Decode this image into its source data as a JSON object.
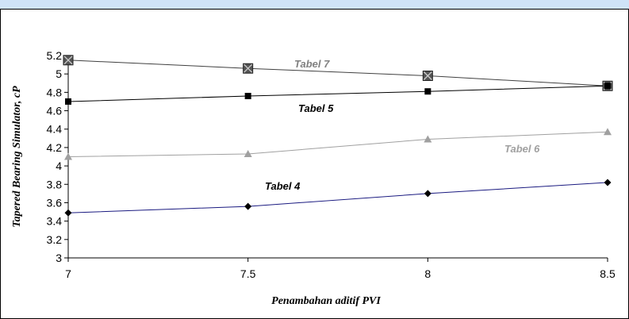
{
  "chart_data": {
    "type": "line",
    "x": [
      7,
      7.5,
      8,
      8.5
    ],
    "xlim": [
      7,
      8.5
    ],
    "ylim": [
      3,
      5.2
    ],
    "xticks": [
      "7",
      "7.5",
      "8",
      "8.5"
    ],
    "yticks": [
      "3",
      "3.2",
      "3.4",
      "3.6",
      "3.8",
      "4",
      "4.2",
      "4.4",
      "4.6",
      "4.8",
      "5",
      "5.2"
    ],
    "xlabel": "Penambahan aditif PVI",
    "ylabel": "Tapered Bearing Simulator, cP",
    "grid": false,
    "series": [
      {
        "name": "Tabel 7",
        "values": [
          5.15,
          5.06,
          4.98,
          4.87
        ],
        "color": "#555555",
        "line_color": "#404040",
        "label_color": "#808080",
        "marker": "x-square"
      },
      {
        "name": "Tabel 5",
        "values": [
          4.7,
          4.76,
          4.81,
          4.87
        ],
        "color": "#000000",
        "line_color": "#000000",
        "label_color": "#000000",
        "marker": "square"
      },
      {
        "name": "Tabel 6",
        "values": [
          4.1,
          4.13,
          4.29,
          4.37
        ],
        "color": "#a0a0a0",
        "line_color": "#a0a0a0",
        "label_color": "#a0a0a0",
        "marker": "triangle"
      },
      {
        "name": "Tabel 4",
        "values": [
          3.49,
          3.56,
          3.7,
          3.82
        ],
        "color": "#000000",
        "line_color": "#1a1a80",
        "label_color": "#000000",
        "marker": "diamond"
      }
    ]
  }
}
